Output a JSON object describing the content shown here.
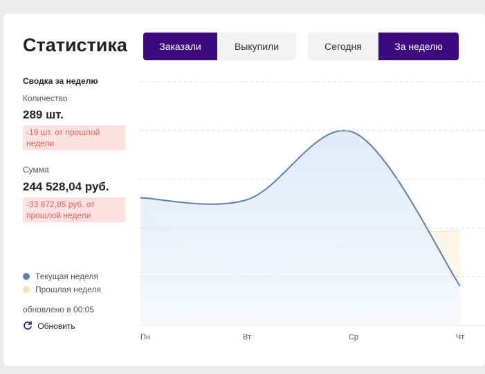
{
  "header": {
    "title": "Статистика",
    "toggle_metric": [
      "Заказали",
      "Выкупили"
    ],
    "toggle_period": [
      "Сегодня",
      "За неделю"
    ]
  },
  "summary": {
    "heading": "Сводка за неделю",
    "count_label": "Количество",
    "count_value": "289 шт.",
    "count_diff": "-19 шт. от прошлой недели",
    "sum_label": "Сумма",
    "sum_value": "244 528,04 руб.",
    "sum_diff": "-33 872,85 руб. от прошлой недели"
  },
  "footer": {
    "updated": "обновлено в 00:05",
    "refresh": "Обновить"
  },
  "chart_data": {
    "type": "area",
    "categories": [
      "Пн",
      "Вт",
      "Ср",
      "Чт"
    ],
    "series": [
      {
        "name": "Текущая неделя",
        "color": "#5a7fae",
        "values": [
          2.62,
          2.58,
          3.96,
          0.81
        ]
      },
      {
        "name": "Прошлая неделя",
        "color": "#f3dfb8",
        "values": [
          2.34,
          1.0,
          1.74,
          1.96
        ]
      }
    ],
    "ylim": [
      0,
      5
    ],
    "yticks": [
      1,
      2,
      3,
      4,
      5
    ],
    "grid": true
  }
}
